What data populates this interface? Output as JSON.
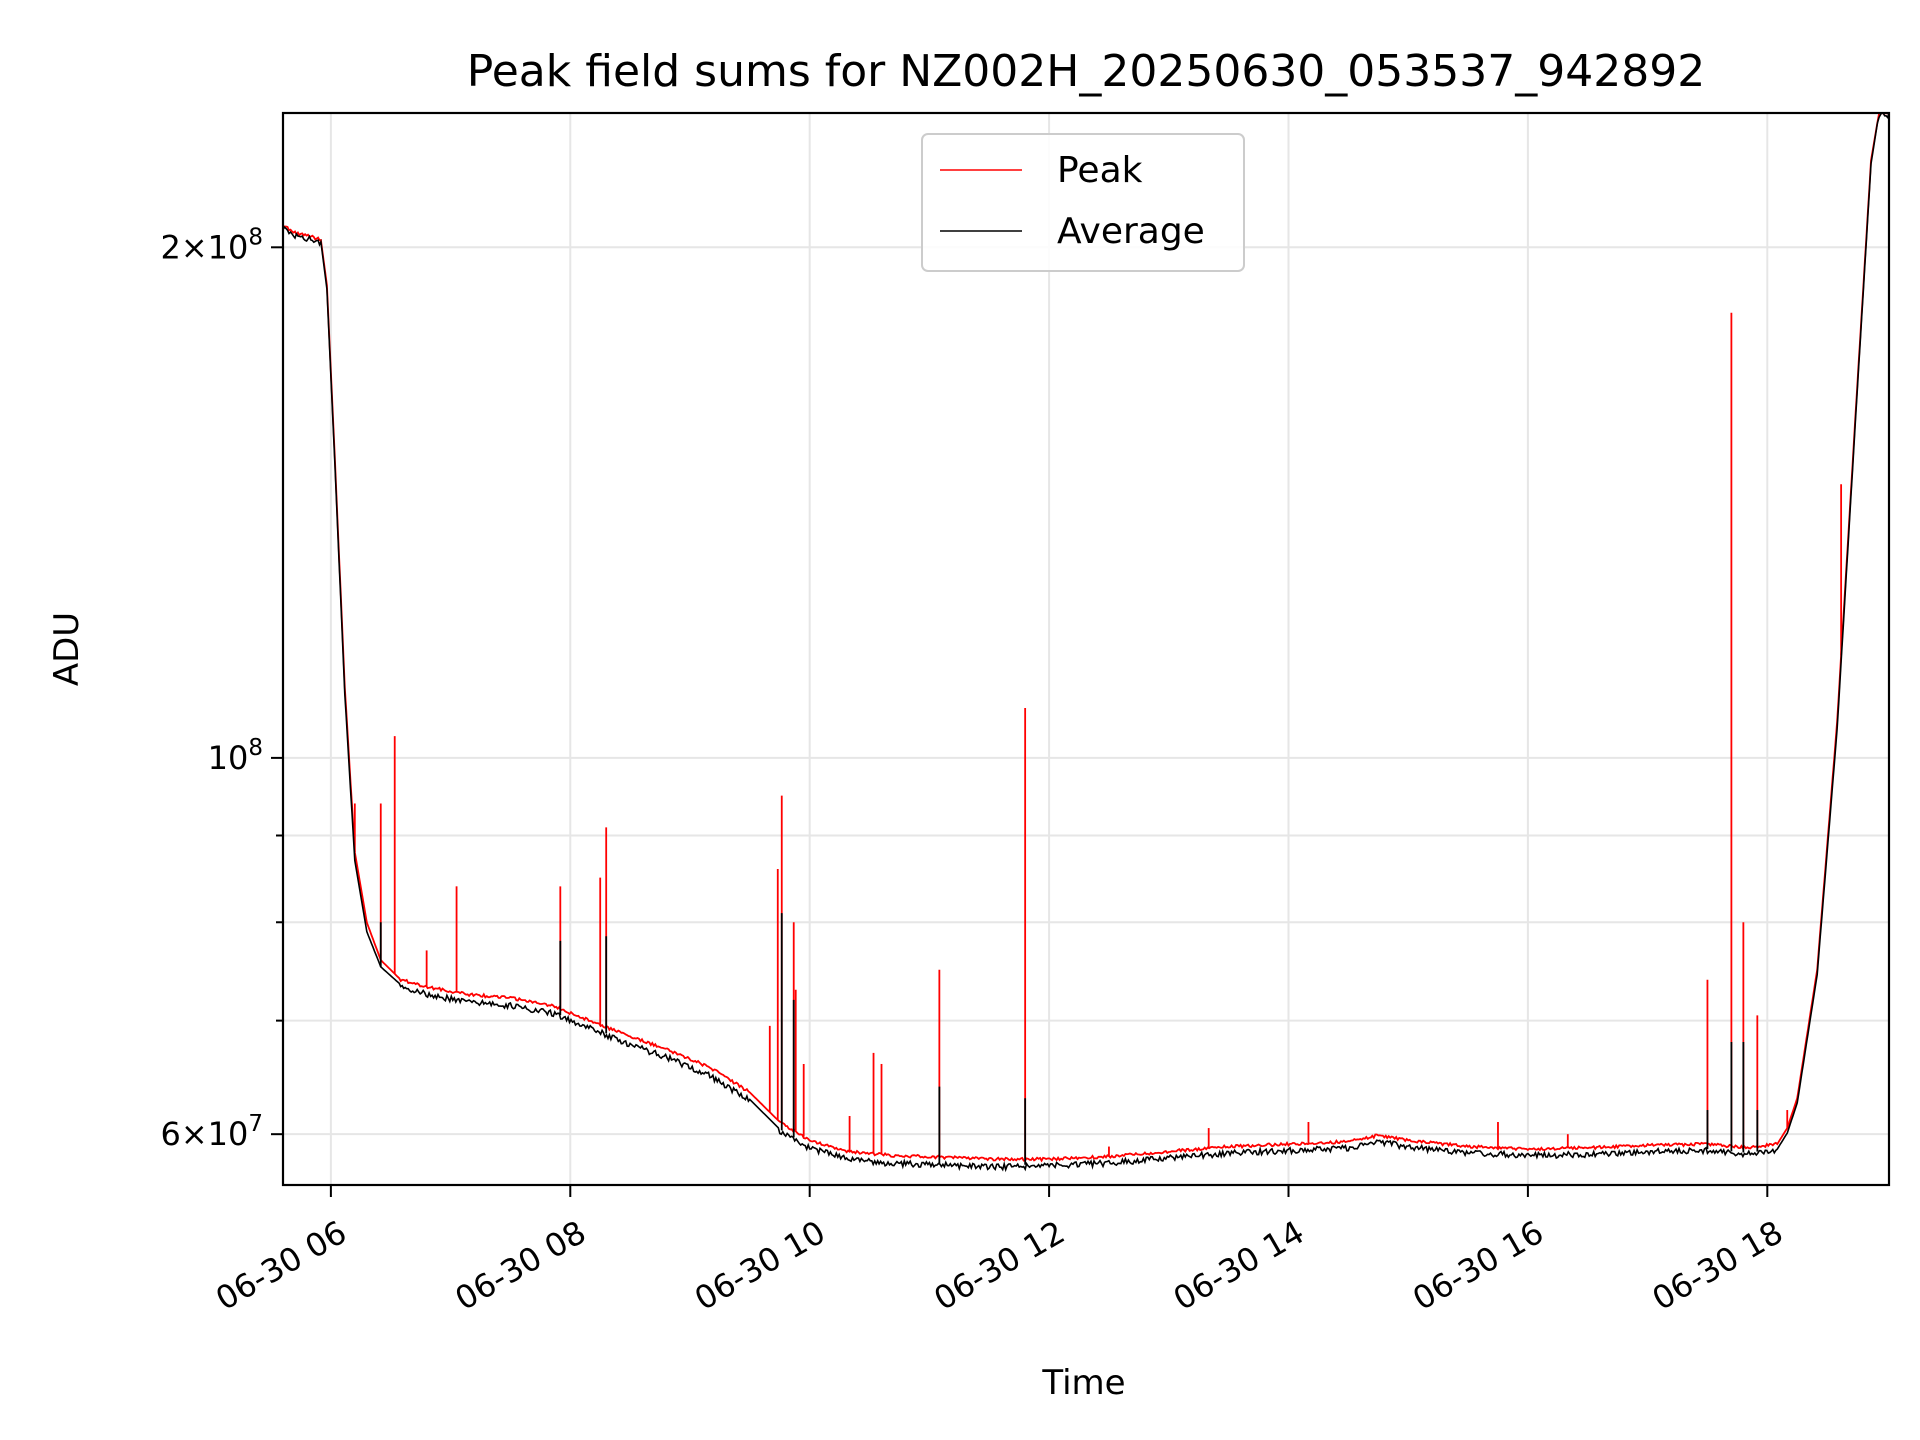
{
  "chart_data": {
    "type": "line",
    "title": "Peak field sums for NZ002H_20250630_053537_942892",
    "xlabel": "Time",
    "ylabel": "ADU",
    "y_scale": "log",
    "xlim": [
      "2025-06-30 05:36",
      "2025-06-30 19:01"
    ],
    "ylim": [
      56000000,
      240000000
    ],
    "grid": true,
    "legend_position": "upper-center",
    "x_ticks": [
      {
        "time": "2025-06-30 06:00",
        "label": "06-30 06"
      },
      {
        "time": "2025-06-30 08:00",
        "label": "06-30 08"
      },
      {
        "time": "2025-06-30 10:00",
        "label": "06-30 10"
      },
      {
        "time": "2025-06-30 12:00",
        "label": "06-30 12"
      },
      {
        "time": "2025-06-30 14:00",
        "label": "06-30 14"
      },
      {
        "time": "2025-06-30 16:00",
        "label": "06-30 16"
      },
      {
        "time": "2025-06-30 18:00",
        "label": "06-30 18"
      }
    ],
    "y_major_ticks": [
      {
        "value": 60000000,
        "mantissa": "6",
        "exponent": "7"
      },
      {
        "value": 100000000,
        "mantissa": "",
        "exponent": "8"
      },
      {
        "value": 200000000,
        "mantissa": "2",
        "exponent": "8"
      }
    ],
    "y_minor_ticks": [
      70000000,
      80000000,
      90000000
    ],
    "series": [
      {
        "name": "Peak",
        "color": "#ff0000",
        "baseline": [
          [
            "2025-06-30 05:36",
            206000000
          ],
          [
            "2025-06-30 05:42",
            204000000
          ],
          [
            "2025-06-30 05:50",
            203000000
          ],
          [
            "2025-06-30 05:55",
            202000000
          ],
          [
            "2025-06-30 05:58",
            190000000
          ],
          [
            "2025-06-30 06:02",
            150000000
          ],
          [
            "2025-06-30 06:07",
            110000000
          ],
          [
            "2025-06-30 06:12",
            88000000
          ],
          [
            "2025-06-30 06:18",
            80000000
          ],
          [
            "2025-06-30 06:25",
            76000000
          ],
          [
            "2025-06-30 06:35",
            74000000
          ],
          [
            "2025-06-30 06:50",
            73200000
          ],
          [
            "2025-06-30 07:10",
            72500000
          ],
          [
            "2025-06-30 07:30",
            72200000
          ],
          [
            "2025-06-30 07:50",
            71500000
          ],
          [
            "2025-06-30 08:10",
            70000000
          ],
          [
            "2025-06-30 08:30",
            68500000
          ],
          [
            "2025-06-30 08:50",
            67200000
          ],
          [
            "2025-06-30 09:10",
            65700000
          ],
          [
            "2025-06-30 09:30",
            63500000
          ],
          [
            "2025-06-30 09:45",
            61000000
          ],
          [
            "2025-06-30 10:00",
            59500000
          ],
          [
            "2025-06-30 10:20",
            58600000
          ],
          [
            "2025-06-30 10:40",
            58300000
          ],
          [
            "2025-06-30 11:00",
            58200000
          ],
          [
            "2025-06-30 11:30",
            58000000
          ],
          [
            "2025-06-30 12:00",
            58000000
          ],
          [
            "2025-06-30 12:30",
            58200000
          ],
          [
            "2025-06-30 13:00",
            58600000
          ],
          [
            "2025-06-30 13:30",
            59000000
          ],
          [
            "2025-06-30 14:00",
            59200000
          ],
          [
            "2025-06-30 14:30",
            59400000
          ],
          [
            "2025-06-30 14:45",
            59900000
          ],
          [
            "2025-06-30 15:00",
            59500000
          ],
          [
            "2025-06-30 15:30",
            59000000
          ],
          [
            "2025-06-30 16:00",
            58800000
          ],
          [
            "2025-06-30 16:30",
            58900000
          ],
          [
            "2025-06-30 17:00",
            59100000
          ],
          [
            "2025-06-30 17:30",
            59200000
          ],
          [
            "2025-06-30 17:50",
            58900000
          ],
          [
            "2025-06-30 18:05",
            59200000
          ],
          [
            "2025-06-30 18:10",
            60500000
          ],
          [
            "2025-06-30 18:15",
            63000000
          ],
          [
            "2025-06-30 18:25",
            75000000
          ],
          [
            "2025-06-30 18:35",
            105000000
          ],
          [
            "2025-06-30 18:45",
            165000000
          ],
          [
            "2025-06-30 18:52",
            225000000
          ],
          [
            "2025-06-30 18:56",
            240000000
          ],
          [
            "2025-06-30 19:01",
            240000000
          ]
        ],
        "spikes": [
          [
            "2025-06-30 06:12",
            94000000
          ],
          [
            "2025-06-30 06:25",
            94000000
          ],
          [
            "2025-06-30 06:32",
            103000000
          ],
          [
            "2025-06-30 06:48",
            77000000
          ],
          [
            "2025-06-30 07:03",
            84000000
          ],
          [
            "2025-06-30 07:55",
            84000000
          ],
          [
            "2025-06-30 08:15",
            85000000
          ],
          [
            "2025-06-30 08:18",
            91000000
          ],
          [
            "2025-06-30 09:40",
            69500000
          ],
          [
            "2025-06-30 09:44",
            86000000
          ],
          [
            "2025-06-30 09:46",
            95000000
          ],
          [
            "2025-06-30 09:52",
            80000000
          ],
          [
            "2025-06-30 09:53",
            73000000
          ],
          [
            "2025-06-30 09:57",
            66000000
          ],
          [
            "2025-06-30 10:20",
            61500000
          ],
          [
            "2025-06-30 10:32",
            67000000
          ],
          [
            "2025-06-30 10:36",
            66000000
          ],
          [
            "2025-06-30 11:05",
            75000000
          ],
          [
            "2025-06-30 11:48",
            107000000
          ],
          [
            "2025-06-30 12:30",
            59000000
          ],
          [
            "2025-06-30 13:20",
            60500000
          ],
          [
            "2025-06-30 14:10",
            61000000
          ],
          [
            "2025-06-30 15:45",
            61000000
          ],
          [
            "2025-06-30 16:20",
            60000000
          ],
          [
            "2025-06-30 17:30",
            74000000
          ],
          [
            "2025-06-30 17:42",
            183000000
          ],
          [
            "2025-06-30 17:48",
            80000000
          ],
          [
            "2025-06-30 17:55",
            70500000
          ],
          [
            "2025-06-30 18:10",
            62000000
          ],
          [
            "2025-06-30 18:37",
            145000000
          ]
        ]
      },
      {
        "name": "Average",
        "color": "#000000",
        "baseline": [
          [
            "2025-06-30 05:36",
            205500000
          ],
          [
            "2025-06-30 05:42",
            203500000
          ],
          [
            "2025-06-30 05:50",
            202500000
          ],
          [
            "2025-06-30 05:55",
            201500000
          ],
          [
            "2025-06-30 05:58",
            189000000
          ],
          [
            "2025-06-30 06:02",
            149000000
          ],
          [
            "2025-06-30 06:07",
            109000000
          ],
          [
            "2025-06-30 06:12",
            87000000
          ],
          [
            "2025-06-30 06:18",
            79000000
          ],
          [
            "2025-06-30 06:25",
            75300000
          ],
          [
            "2025-06-30 06:35",
            73500000
          ],
          [
            "2025-06-30 06:50",
            72600000
          ],
          [
            "2025-06-30 07:10",
            71900000
          ],
          [
            "2025-06-30 07:30",
            71600000
          ],
          [
            "2025-06-30 07:50",
            70900000
          ],
          [
            "2025-06-30 08:10",
            69400000
          ],
          [
            "2025-06-30 08:30",
            67900000
          ],
          [
            "2025-06-30 08:50",
            66600000
          ],
          [
            "2025-06-30 09:10",
            65100000
          ],
          [
            "2025-06-30 09:30",
            62900000
          ],
          [
            "2025-06-30 09:45",
            60400000
          ],
          [
            "2025-06-30 10:00",
            59000000
          ],
          [
            "2025-06-30 10:20",
            58100000
          ],
          [
            "2025-06-30 10:40",
            57800000
          ],
          [
            "2025-06-30 11:00",
            57700000
          ],
          [
            "2025-06-30 11:30",
            57500000
          ],
          [
            "2025-06-30 12:00",
            57600000
          ],
          [
            "2025-06-30 12:30",
            57800000
          ],
          [
            "2025-06-30 13:00",
            58200000
          ],
          [
            "2025-06-30 13:30",
            58600000
          ],
          [
            "2025-06-30 14:00",
            58800000
          ],
          [
            "2025-06-30 14:30",
            59000000
          ],
          [
            "2025-06-30 14:45",
            59500000
          ],
          [
            "2025-06-30 15:00",
            59100000
          ],
          [
            "2025-06-30 15:30",
            58600000
          ],
          [
            "2025-06-30 16:00",
            58400000
          ],
          [
            "2025-06-30 16:30",
            58500000
          ],
          [
            "2025-06-30 17:00",
            58700000
          ],
          [
            "2025-06-30 17:30",
            58800000
          ],
          [
            "2025-06-30 17:50",
            58500000
          ],
          [
            "2025-06-30 18:05",
            58800000
          ],
          [
            "2025-06-30 18:10",
            60100000
          ],
          [
            "2025-06-30 18:15",
            62600000
          ],
          [
            "2025-06-30 18:25",
            74500000
          ],
          [
            "2025-06-30 18:35",
            104000000
          ],
          [
            "2025-06-30 18:45",
            164000000
          ],
          [
            "2025-06-30 18:52",
            224000000
          ],
          [
            "2025-06-30 18:56",
            240000000
          ],
          [
            "2025-06-30 19:01",
            240000000
          ]
        ],
        "spikes": [
          [
            "2025-06-30 06:25",
            80000000
          ],
          [
            "2025-06-30 07:55",
            78000000
          ],
          [
            "2025-06-30 08:18",
            78500000
          ],
          [
            "2025-06-30 09:46",
            81000000
          ],
          [
            "2025-06-30 09:52",
            72000000
          ],
          [
            "2025-06-30 11:05",
            64000000
          ],
          [
            "2025-06-30 11:48",
            63000000
          ],
          [
            "2025-06-30 17:30",
            62000000
          ],
          [
            "2025-06-30 17:42",
            68000000
          ],
          [
            "2025-06-30 17:48",
            68000000
          ],
          [
            "2025-06-30 17:55",
            62000000
          ]
        ]
      }
    ]
  }
}
